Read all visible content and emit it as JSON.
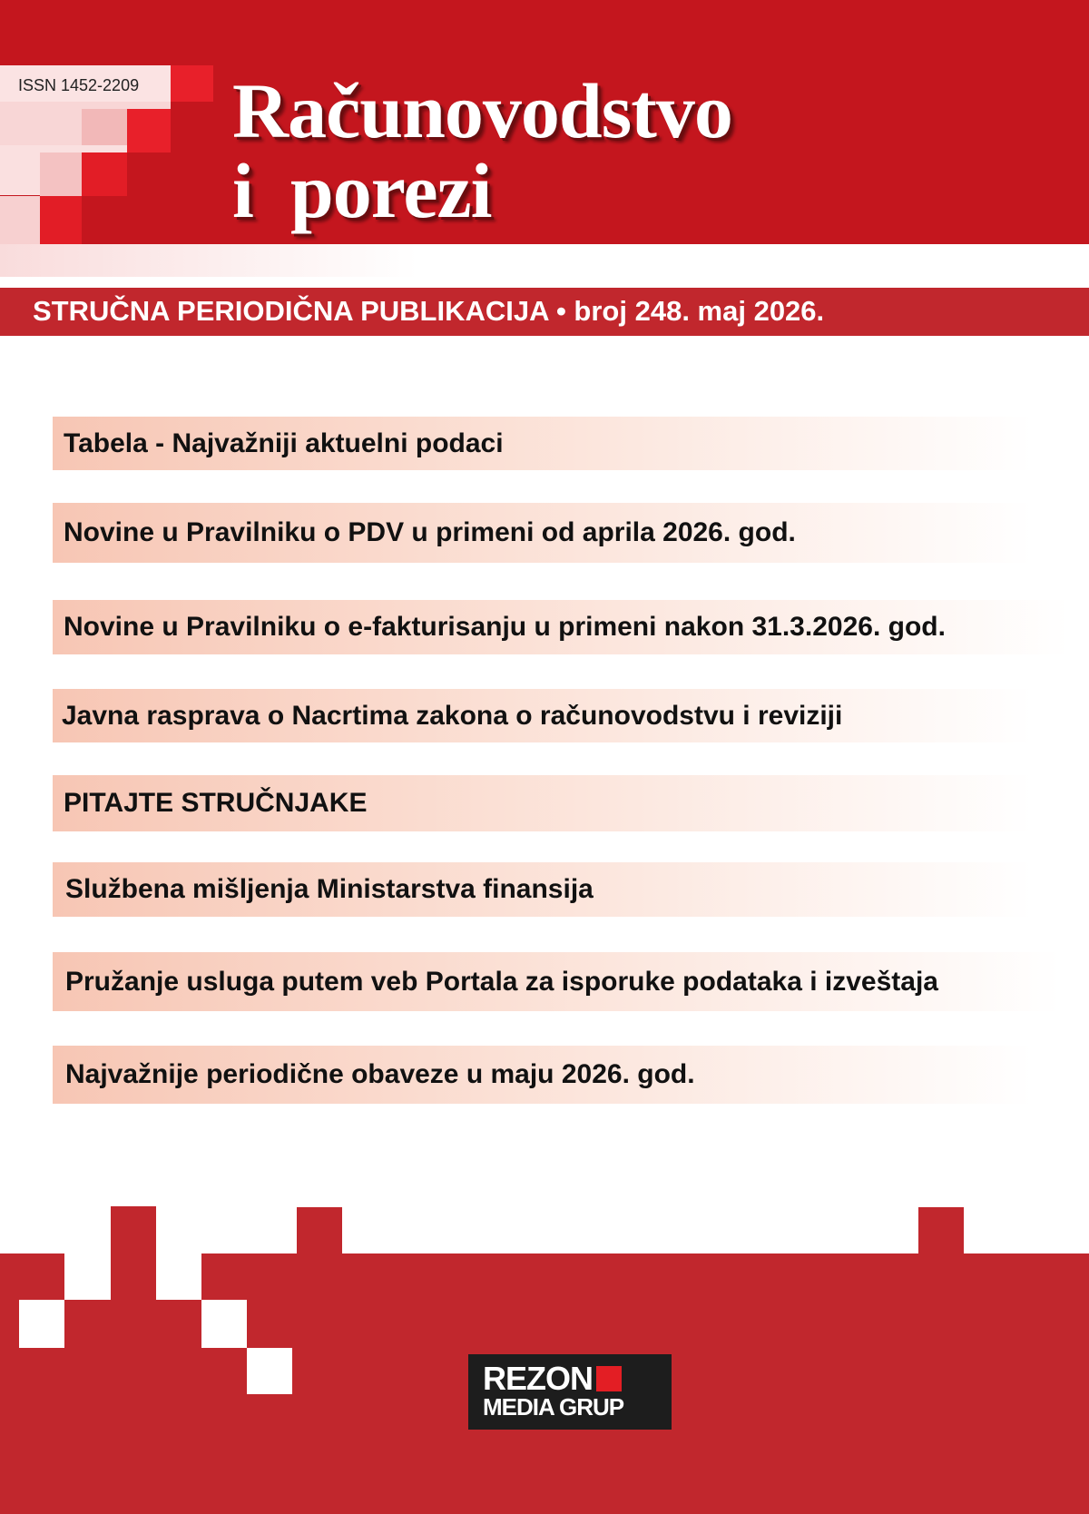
{
  "header": {
    "issn": "ISSN 1452-2209",
    "title_line1": "Računovodstvo",
    "title_line2": "i  porezi",
    "subtitle": "STRUČNA PERIODIČNA PUBLIKACIJA • broj 248. maj 2026."
  },
  "contents": [
    "Tabela - Najvažniji aktuelni podaci",
    "Novine u Pravilniku o PDV u primeni od aprila 2026. god.",
    "Novine u Pravilniku o e-fakturisanju u primeni nakon 31.3.2026. god.",
    "Javna rasprava o Nacrtima zakona o računovodstvu i reviziji",
    "PITAJTE STRUČNJAKE",
    "Službena mišljenja Ministarstva finansija",
    "Pružanje usluga putem veb Portala za isporuke podataka i izveštaja",
    "Najvažnije periodične obaveze u maju 2026. god."
  ],
  "publisher": {
    "line1": "REZON",
    "line2": "MEDIA GRUP"
  },
  "colors": {
    "brand_red": "#c4161e",
    "band_red": "#c1272d",
    "logo_bg": "#1d1d1d"
  }
}
